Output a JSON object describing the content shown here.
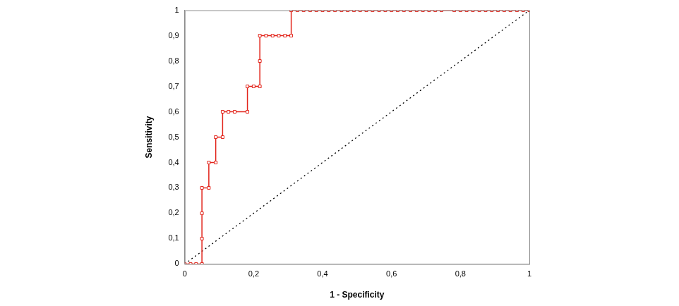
{
  "chart_data": {
    "type": "line",
    "x_label": "1 - Specificity",
    "y_label": "Sensitivity",
    "xlim": [
      0,
      1
    ],
    "ylim": [
      0,
      1
    ],
    "xticks": [
      0,
      {
        "value": 0.2,
        "label": "0,2"
      },
      {
        "value": 0.4,
        "label": "0,4"
      },
      {
        "value": 0.6,
        "label": "0,6"
      },
      {
        "value": 0.8,
        "label": "0,8"
      },
      1
    ],
    "yticks": [
      0,
      {
        "value": 0.1,
        "label": "0,1"
      },
      {
        "value": 0.2,
        "label": "0,2"
      },
      {
        "value": 0.3,
        "label": "0,3"
      },
      {
        "value": 0.4,
        "label": "0,4"
      },
      {
        "value": 0.5,
        "label": "0,5"
      },
      {
        "value": 0.6,
        "label": "0,6"
      },
      {
        "value": 0.7,
        "label": "0,7"
      },
      {
        "value": 0.8,
        "label": "0,8"
      },
      {
        "value": 0.9,
        "label": "0,9"
      },
      1
    ],
    "grid": false,
    "series": [
      {
        "color": "#e2231a",
        "marker": "square",
        "line_style": "solid",
        "x": [
          0,
          0.017,
          0.033,
          0.05,
          0.05,
          0.05,
          0.05,
          0.07,
          0.07,
          0.09,
          0.09,
          0.11,
          0.11,
          0.127,
          0.145,
          0.182,
          0.182,
          0.2,
          0.218,
          0.218,
          0.218,
          0.236,
          0.255,
          0.273,
          0.291,
          0.309,
          0.309,
          0.327,
          0.345,
          0.364,
          0.382,
          0.4,
          0.418,
          0.436,
          0.455,
          0.473,
          0.491,
          0.509,
          0.527,
          0.545,
          0.564,
          0.582,
          0.6,
          0.618,
          0.636,
          0.655,
          0.673,
          0.691,
          0.709,
          0.727,
          0.745,
          0.782,
          0.8,
          0.818,
          0.836,
          0.855,
          0.873,
          0.891,
          0.909,
          0.927,
          0.945,
          0.964,
          0.982,
          1
        ],
        "values": [
          0,
          0,
          0,
          0,
          0.1,
          0.2,
          0.3,
          0.3,
          0.4,
          0.4,
          0.5,
          0.5,
          0.6,
          0.6,
          0.6,
          0.6,
          0.7,
          0.7,
          0.7,
          0.8,
          0.9,
          0.9,
          0.9,
          0.9,
          0.9,
          0.9,
          1,
          1,
          1,
          1,
          1,
          1,
          1,
          1,
          1,
          1,
          1,
          1,
          1,
          1,
          1,
          1,
          1,
          1,
          1,
          1,
          1,
          1,
          1,
          1,
          1,
          1,
          1,
          1,
          1,
          1,
          1,
          1,
          1,
          1,
          1,
          1,
          1,
          1
        ]
      },
      {
        "color": "#000000",
        "marker": "none",
        "line_style": "dotted",
        "x": [
          0,
          1
        ],
        "values": [
          0,
          1
        ]
      }
    ]
  }
}
